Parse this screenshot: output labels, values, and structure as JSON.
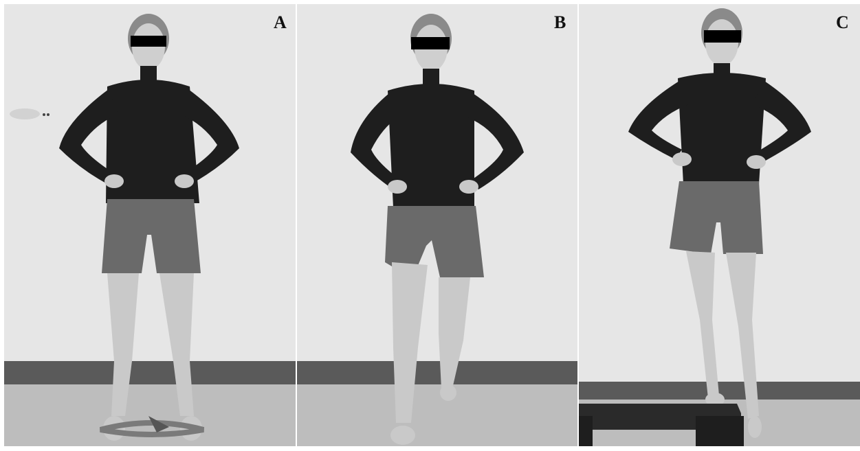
{
  "figure": {
    "panels": [
      {
        "label": "A",
        "scene": "standing-feet-apart-resistance-band-around-feet"
      },
      {
        "label": "B",
        "scene": "split-stance-lunge-one-knee-forward"
      },
      {
        "label": "C",
        "scene": "single-leg-stance-on-step-platform"
      }
    ]
  },
  "colors": {
    "wall": "#e6e6e6",
    "floor": "#bdbdbd",
    "baseboard": "#5a5a5a",
    "top": "#1e1e1e",
    "shorts": "#6a6a6a",
    "skin": "#c9c9c9",
    "censor_bar": "#000000",
    "step": "#2a2a2a",
    "band": "#7a7a7a"
  }
}
